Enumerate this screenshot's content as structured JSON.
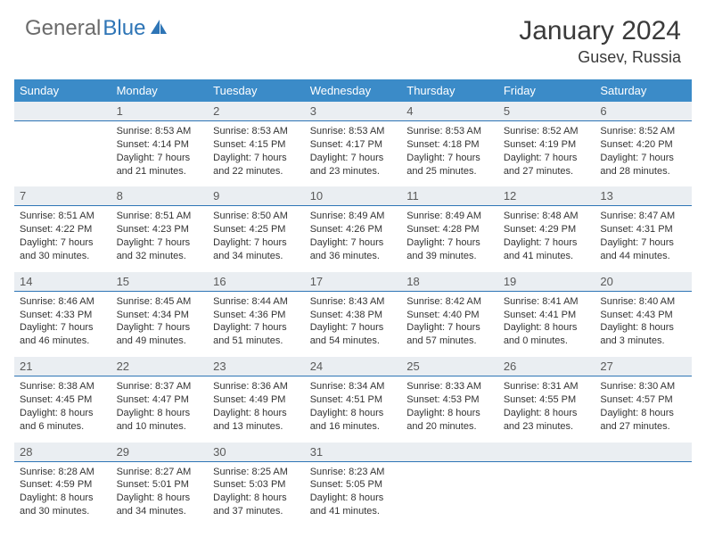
{
  "brand": {
    "part1": "General",
    "part2": "Blue"
  },
  "title": "January 2024",
  "location": "Gusev, Russia",
  "colors": {
    "header_bg": "#3b8bc8",
    "header_fg": "#ffffff",
    "date_bg": "#eaeef2",
    "date_fg": "#5a5a5a",
    "date_border": "#2e75b6",
    "text": "#333333",
    "logo_gray": "#6b6b6b",
    "logo_blue": "#2e75b6"
  },
  "day_names": [
    "Sunday",
    "Monday",
    "Tuesday",
    "Wednesday",
    "Thursday",
    "Friday",
    "Saturday"
  ],
  "weeks": [
    {
      "dates": [
        "",
        "1",
        "2",
        "3",
        "4",
        "5",
        "6"
      ],
      "info": [
        {},
        {
          "sunrise": "Sunrise: 8:53 AM",
          "sunset": "Sunset: 4:14 PM",
          "dl1": "Daylight: 7 hours",
          "dl2": "and 21 minutes."
        },
        {
          "sunrise": "Sunrise: 8:53 AM",
          "sunset": "Sunset: 4:15 PM",
          "dl1": "Daylight: 7 hours",
          "dl2": "and 22 minutes."
        },
        {
          "sunrise": "Sunrise: 8:53 AM",
          "sunset": "Sunset: 4:17 PM",
          "dl1": "Daylight: 7 hours",
          "dl2": "and 23 minutes."
        },
        {
          "sunrise": "Sunrise: 8:53 AM",
          "sunset": "Sunset: 4:18 PM",
          "dl1": "Daylight: 7 hours",
          "dl2": "and 25 minutes."
        },
        {
          "sunrise": "Sunrise: 8:52 AM",
          "sunset": "Sunset: 4:19 PM",
          "dl1": "Daylight: 7 hours",
          "dl2": "and 27 minutes."
        },
        {
          "sunrise": "Sunrise: 8:52 AM",
          "sunset": "Sunset: 4:20 PM",
          "dl1": "Daylight: 7 hours",
          "dl2": "and 28 minutes."
        }
      ]
    },
    {
      "dates": [
        "7",
        "8",
        "9",
        "10",
        "11",
        "12",
        "13"
      ],
      "info": [
        {
          "sunrise": "Sunrise: 8:51 AM",
          "sunset": "Sunset: 4:22 PM",
          "dl1": "Daylight: 7 hours",
          "dl2": "and 30 minutes."
        },
        {
          "sunrise": "Sunrise: 8:51 AM",
          "sunset": "Sunset: 4:23 PM",
          "dl1": "Daylight: 7 hours",
          "dl2": "and 32 minutes."
        },
        {
          "sunrise": "Sunrise: 8:50 AM",
          "sunset": "Sunset: 4:25 PM",
          "dl1": "Daylight: 7 hours",
          "dl2": "and 34 minutes."
        },
        {
          "sunrise": "Sunrise: 8:49 AM",
          "sunset": "Sunset: 4:26 PM",
          "dl1": "Daylight: 7 hours",
          "dl2": "and 36 minutes."
        },
        {
          "sunrise": "Sunrise: 8:49 AM",
          "sunset": "Sunset: 4:28 PM",
          "dl1": "Daylight: 7 hours",
          "dl2": "and 39 minutes."
        },
        {
          "sunrise": "Sunrise: 8:48 AM",
          "sunset": "Sunset: 4:29 PM",
          "dl1": "Daylight: 7 hours",
          "dl2": "and 41 minutes."
        },
        {
          "sunrise": "Sunrise: 8:47 AM",
          "sunset": "Sunset: 4:31 PM",
          "dl1": "Daylight: 7 hours",
          "dl2": "and 44 minutes."
        }
      ]
    },
    {
      "dates": [
        "14",
        "15",
        "16",
        "17",
        "18",
        "19",
        "20"
      ],
      "info": [
        {
          "sunrise": "Sunrise: 8:46 AM",
          "sunset": "Sunset: 4:33 PM",
          "dl1": "Daylight: 7 hours",
          "dl2": "and 46 minutes."
        },
        {
          "sunrise": "Sunrise: 8:45 AM",
          "sunset": "Sunset: 4:34 PM",
          "dl1": "Daylight: 7 hours",
          "dl2": "and 49 minutes."
        },
        {
          "sunrise": "Sunrise: 8:44 AM",
          "sunset": "Sunset: 4:36 PM",
          "dl1": "Daylight: 7 hours",
          "dl2": "and 51 minutes."
        },
        {
          "sunrise": "Sunrise: 8:43 AM",
          "sunset": "Sunset: 4:38 PM",
          "dl1": "Daylight: 7 hours",
          "dl2": "and 54 minutes."
        },
        {
          "sunrise": "Sunrise: 8:42 AM",
          "sunset": "Sunset: 4:40 PM",
          "dl1": "Daylight: 7 hours",
          "dl2": "and 57 minutes."
        },
        {
          "sunrise": "Sunrise: 8:41 AM",
          "sunset": "Sunset: 4:41 PM",
          "dl1": "Daylight: 8 hours",
          "dl2": "and 0 minutes."
        },
        {
          "sunrise": "Sunrise: 8:40 AM",
          "sunset": "Sunset: 4:43 PM",
          "dl1": "Daylight: 8 hours",
          "dl2": "and 3 minutes."
        }
      ]
    },
    {
      "dates": [
        "21",
        "22",
        "23",
        "24",
        "25",
        "26",
        "27"
      ],
      "info": [
        {
          "sunrise": "Sunrise: 8:38 AM",
          "sunset": "Sunset: 4:45 PM",
          "dl1": "Daylight: 8 hours",
          "dl2": "and 6 minutes."
        },
        {
          "sunrise": "Sunrise: 8:37 AM",
          "sunset": "Sunset: 4:47 PM",
          "dl1": "Daylight: 8 hours",
          "dl2": "and 10 minutes."
        },
        {
          "sunrise": "Sunrise: 8:36 AM",
          "sunset": "Sunset: 4:49 PM",
          "dl1": "Daylight: 8 hours",
          "dl2": "and 13 minutes."
        },
        {
          "sunrise": "Sunrise: 8:34 AM",
          "sunset": "Sunset: 4:51 PM",
          "dl1": "Daylight: 8 hours",
          "dl2": "and 16 minutes."
        },
        {
          "sunrise": "Sunrise: 8:33 AM",
          "sunset": "Sunset: 4:53 PM",
          "dl1": "Daylight: 8 hours",
          "dl2": "and 20 minutes."
        },
        {
          "sunrise": "Sunrise: 8:31 AM",
          "sunset": "Sunset: 4:55 PM",
          "dl1": "Daylight: 8 hours",
          "dl2": "and 23 minutes."
        },
        {
          "sunrise": "Sunrise: 8:30 AM",
          "sunset": "Sunset: 4:57 PM",
          "dl1": "Daylight: 8 hours",
          "dl2": "and 27 minutes."
        }
      ]
    },
    {
      "dates": [
        "28",
        "29",
        "30",
        "31",
        "",
        "",
        ""
      ],
      "info": [
        {
          "sunrise": "Sunrise: 8:28 AM",
          "sunset": "Sunset: 4:59 PM",
          "dl1": "Daylight: 8 hours",
          "dl2": "and 30 minutes."
        },
        {
          "sunrise": "Sunrise: 8:27 AM",
          "sunset": "Sunset: 5:01 PM",
          "dl1": "Daylight: 8 hours",
          "dl2": "and 34 minutes."
        },
        {
          "sunrise": "Sunrise: 8:25 AM",
          "sunset": "Sunset: 5:03 PM",
          "dl1": "Daylight: 8 hours",
          "dl2": "and 37 minutes."
        },
        {
          "sunrise": "Sunrise: 8:23 AM",
          "sunset": "Sunset: 5:05 PM",
          "dl1": "Daylight: 8 hours",
          "dl2": "and 41 minutes."
        },
        {},
        {},
        {}
      ]
    }
  ]
}
